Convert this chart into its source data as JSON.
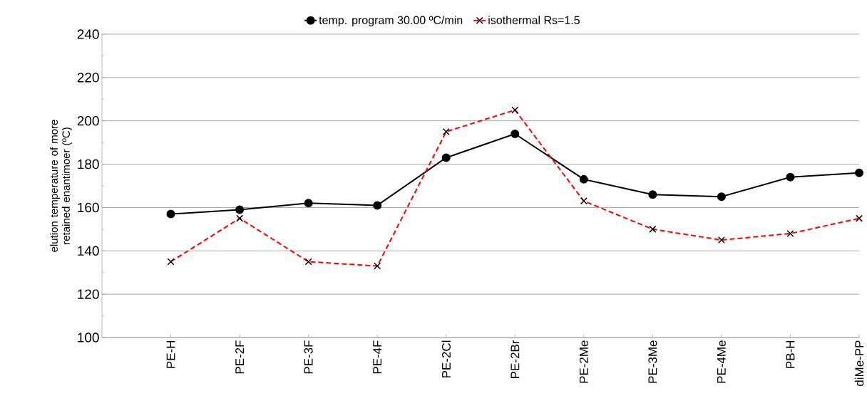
{
  "chart_data": {
    "type": "line",
    "ylabel": "elution temperature of more retained enantimoer (ºC)",
    "categories": [
      "PE-H",
      "PE-2F",
      "PE-3F",
      "PE-4F",
      "PE-2Cl",
      "PE-2Br",
      "PE-2Me",
      "PE-3Me",
      "PE-4Me",
      "PB-H",
      "diMe-PP"
    ],
    "series": [
      {
        "name": "temp. program 30.00 ºC/min",
        "color": "#000000",
        "marker": "circle",
        "line_style": "solid",
        "values": [
          157,
          159,
          162,
          161,
          183,
          194,
          173,
          166,
          165,
          174,
          176
        ]
      },
      {
        "name": "isothermal Rs=1.5",
        "color": "#ff0000",
        "marker": "cross",
        "line_style": "dashed",
        "values": [
          135,
          155,
          135,
          133,
          195,
          205,
          163,
          150,
          145,
          148,
          155
        ]
      }
    ],
    "ylim": [
      100,
      240
    ],
    "yticks": [
      100,
      120,
      140,
      160,
      180,
      200,
      220,
      240
    ],
    "grid": "y",
    "legend": "top"
  }
}
